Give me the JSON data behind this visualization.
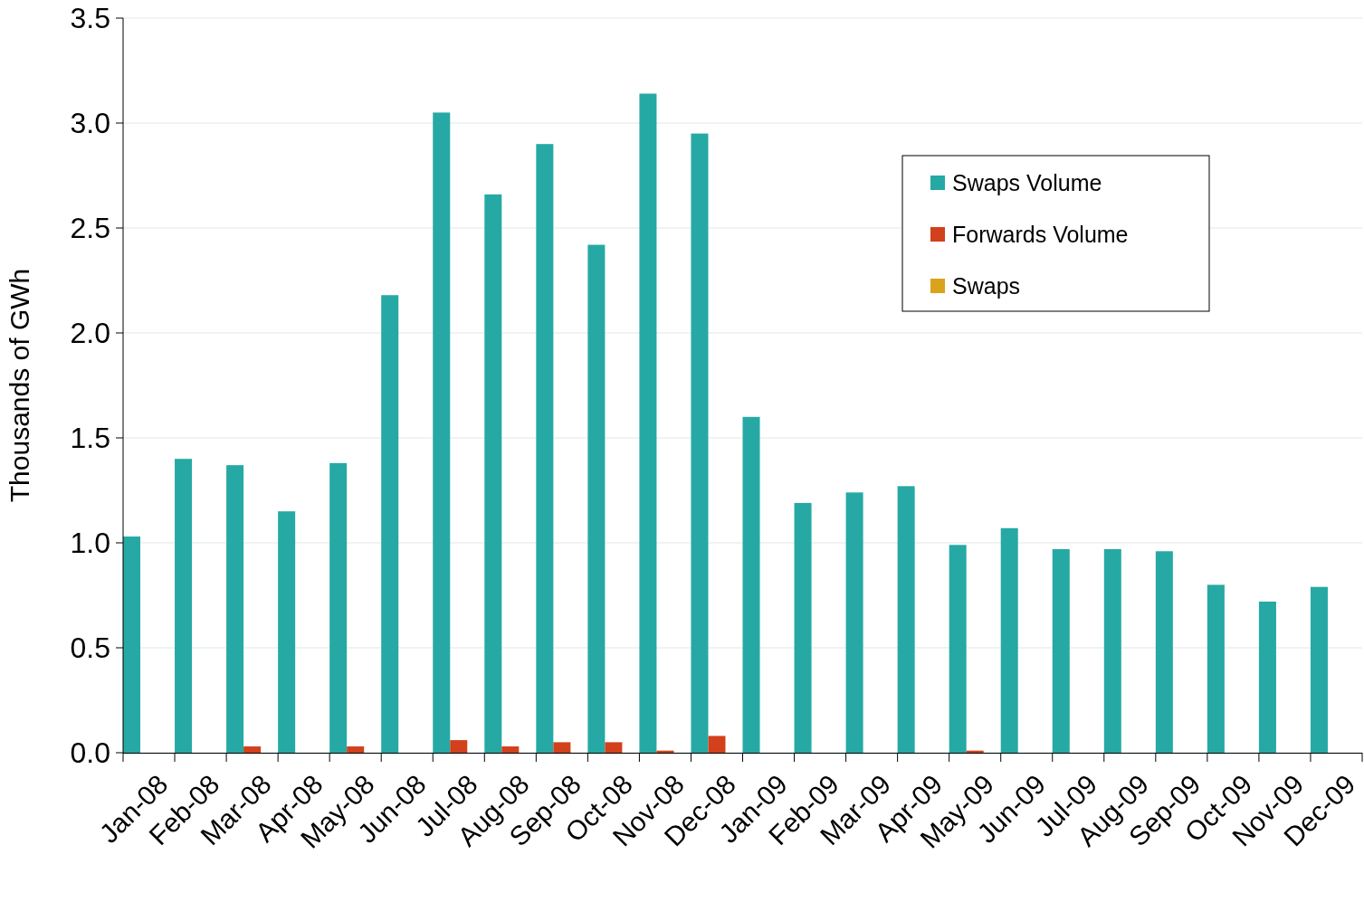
{
  "chart_data": {
    "type": "bar",
    "ylabel": "Thousands of GWh",
    "categories": [
      "Jan-08",
      "Feb-08",
      "Mar-08",
      "Apr-08",
      "May-08",
      "Jun-08",
      "Jul-08",
      "Aug-08",
      "Sep-08",
      "Oct-08",
      "Nov-08",
      "Dec-08",
      "Jan-09",
      "Feb-09",
      "Mar-09",
      "Apr-09",
      "May-09",
      "Jun-09",
      "Jul-09",
      "Aug-09",
      "Sep-09",
      "Oct-09",
      "Nov-09",
      "Dec-09"
    ],
    "series": [
      {
        "name": "Swaps Volume",
        "color": "#26a9a4",
        "values": [
          1.03,
          1.4,
          1.37,
          1.15,
          1.38,
          2.18,
          3.05,
          2.66,
          2.9,
          2.42,
          3.14,
          2.95,
          1.6,
          1.19,
          1.24,
          1.27,
          0.99,
          1.07,
          0.97,
          0.97,
          0.96,
          0.8,
          0.72,
          0.79
        ]
      },
      {
        "name": "Forwards Volume",
        "color": "#d2401c",
        "values": [
          0,
          0,
          0.03,
          0,
          0.03,
          0,
          0.06,
          0.03,
          0.05,
          0.05,
          0.01,
          0.08,
          0,
          0,
          0,
          0,
          0.01,
          0,
          0,
          0,
          0,
          0,
          0,
          0
        ]
      },
      {
        "name": "Swaps",
        "color": "#d9a31a",
        "values": [
          0,
          0,
          0,
          0,
          0,
          0,
          0,
          0,
          0,
          0,
          0,
          0,
          0,
          0,
          0,
          0,
          0,
          0,
          0,
          0,
          0,
          0,
          0,
          0
        ]
      }
    ],
    "ylim": [
      0,
      3.5
    ],
    "yticks": [
      {
        "value": 0,
        "label": "0.0"
      },
      {
        "value": 0.5,
        "label": "0.5"
      },
      {
        "value": 1,
        "label": "1.0"
      },
      {
        "value": 1.5,
        "label": "1.5"
      },
      {
        "value": 2,
        "label": "2.0"
      },
      {
        "value": 2.5,
        "label": "2.5"
      },
      {
        "value": 3,
        "label": "3.0"
      },
      {
        "value": 3.5,
        "label": "3.5"
      }
    ],
    "grid": "y",
    "legend": "top right"
  }
}
